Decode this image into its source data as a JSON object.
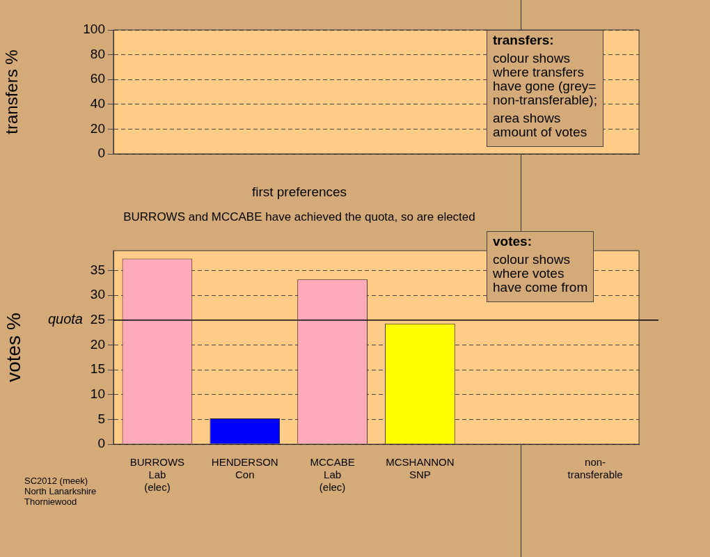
{
  "chart_data": [
    {
      "type": "bar",
      "ylabel": "transfers %",
      "categories": [
        null,
        null,
        null,
        null,
        null,
        null
      ],
      "values": [
        null,
        null,
        null,
        null,
        null,
        null
      ],
      "ylim": [
        0,
        100
      ],
      "yticks": [
        0,
        20,
        40,
        60,
        80,
        100
      ],
      "grid": "y",
      "tick_labels": "y",
      "annotations": [
        "transfers:",
        "colour shows\nwhere transfers\nhave gone (grey=\nnon-transferable);",
        "area shows\namount of votes"
      ]
    },
    {
      "type": "bar",
      "title": "first preferences",
      "subtitle": "BURROWS and MCCABE have achieved the quota, so are elected",
      "ylabel": "votes %",
      "categories": [
        "BURROWS\nLab\n(elec)",
        "HENDERSON\nCon",
        "MCCABE\nLab\n(elec)",
        "MCSHANNON\nSNP",
        null,
        "non-\ntransferable"
      ],
      "values": [
        37.4,
        5.2,
        33.2,
        24.3,
        null,
        null
      ],
      "colors": [
        "#ffaabb",
        "#0000ff",
        "#ffaabb",
        "#ffff00",
        null,
        null
      ],
      "ylim": [
        0,
        39
      ],
      "yticks": [
        0,
        5,
        10,
        15,
        20,
        25,
        30,
        35
      ],
      "grid": "y",
      "ref_lines": [
        {
          "axis": "y",
          "value": 25,
          "label": "quota"
        }
      ],
      "annotations": [
        "votes:",
        "colour shows\nwhere votes\nhave come from",
        "SC2012 (meek)\nNorth Lanarkshire\nThorniewood"
      ]
    }
  ]
}
